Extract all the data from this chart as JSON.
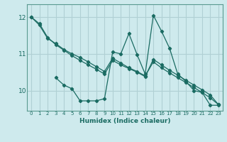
{
  "xlabel": "Humidex (Indice chaleur)",
  "bg_color": "#ceeaed",
  "grid_color": "#b0d0d4",
  "line_color": "#1a6b62",
  "xlim": [
    -0.5,
    23.5
  ],
  "ylim": [
    9.45,
    12.35
  ],
  "yticks": [
    10,
    11,
    12
  ],
  "xticks": [
    0,
    1,
    2,
    3,
    4,
    5,
    6,
    7,
    8,
    9,
    10,
    11,
    12,
    13,
    14,
    15,
    16,
    17,
    18,
    19,
    20,
    21,
    22,
    23
  ],
  "line1_x": [
    0,
    1,
    2,
    3,
    4,
    5,
    6,
    7,
    8,
    9,
    10,
    11,
    12,
    13,
    14,
    15,
    16,
    17,
    18,
    19,
    20,
    21,
    22,
    23
  ],
  "line1_y": [
    12.0,
    11.82,
    11.45,
    11.25,
    11.1,
    10.95,
    10.82,
    10.7,
    10.58,
    10.45,
    10.82,
    10.7,
    10.6,
    10.5,
    10.38,
    10.85,
    10.7,
    10.55,
    10.42,
    10.28,
    10.15,
    10.02,
    9.88,
    9.62
  ],
  "line2_x": [
    0,
    1,
    2,
    3,
    4,
    5,
    6,
    7,
    8,
    9,
    10,
    11,
    12,
    13,
    14,
    15,
    16,
    17,
    18,
    19,
    20,
    21,
    22,
    23
  ],
  "line2_y": [
    12.0,
    11.78,
    11.42,
    11.28,
    11.12,
    11.0,
    10.9,
    10.78,
    10.65,
    10.52,
    10.88,
    10.75,
    10.62,
    10.52,
    10.4,
    10.78,
    10.62,
    10.48,
    10.35,
    10.22,
    10.08,
    9.95,
    9.8,
    9.62
  ],
  "line3_x": [
    3,
    4,
    5,
    6,
    7,
    8,
    9,
    10,
    11,
    12,
    13,
    14,
    15,
    16,
    17,
    18,
    19,
    20,
    21,
    22,
    23
  ],
  "line3_y": [
    10.35,
    10.15,
    10.05,
    9.72,
    9.72,
    9.72,
    9.78,
    11.05,
    11.0,
    11.55,
    10.98,
    10.45,
    12.05,
    11.62,
    11.15,
    10.45,
    10.25,
    10.0,
    9.95,
    9.6,
    9.6
  ],
  "xtick_fontsize": 5.0,
  "ytick_fontsize": 6.5,
  "xlabel_fontsize": 6.5
}
